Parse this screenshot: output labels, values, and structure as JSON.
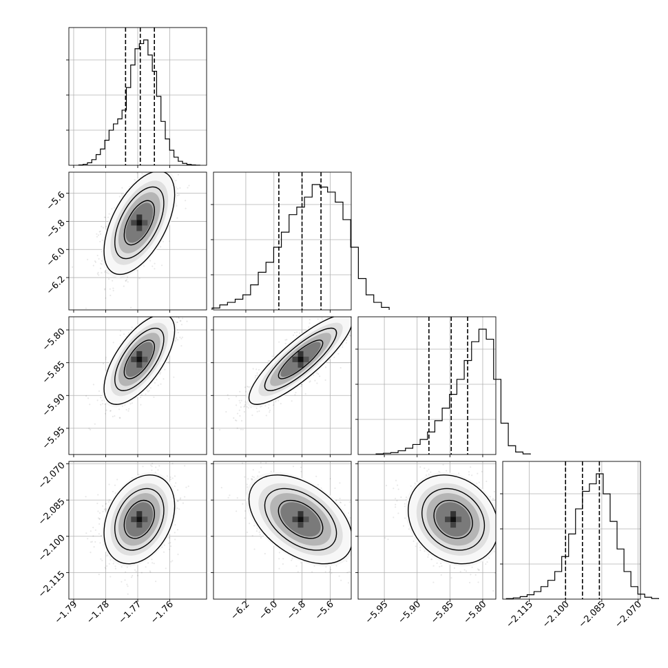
{
  "chart_data": {
    "type": "corner",
    "parameters": [
      {
        "mean": -1.7695,
        "sigma": 0.0045,
        "range": [
          -1.7915,
          -1.7485
        ],
        "ticks": [
          -1.79,
          -1.78,
          -1.77,
          -1.76
        ],
        "tick_labels": [
          "−1.79",
          "−1.78",
          "−1.77",
          "−1.76"
        ],
        "quantiles": [
          -1.7738,
          -1.7692,
          -1.7648
        ],
        "hist_values": [
          0.003,
          0.008,
          0.02,
          0.045,
          0.085,
          0.13,
          0.2,
          0.28,
          0.33,
          0.37,
          0.44,
          0.62,
          0.8,
          0.93,
          0.97,
          1.0,
          0.88,
          0.75,
          0.55,
          0.35,
          0.21,
          0.12,
          0.065,
          0.032,
          0.015,
          0.007,
          0.003,
          0.001
        ]
      },
      {
        "mean": -5.81,
        "sigma": 0.15,
        "range": [
          -6.43,
          -5.45
        ],
        "ticks": [
          -6.2,
          -6.0,
          -5.8,
          -5.6
        ],
        "tick_labels": [
          "−6.2",
          "−6.0",
          "−5.8",
          "−5.6"
        ],
        "quantiles": [
          -5.965,
          -5.8,
          -5.665
        ],
        "hist_values": [
          0.015,
          0.04,
          0.06,
          0.085,
          0.12,
          0.2,
          0.3,
          0.38,
          0.5,
          0.62,
          0.76,
          0.82,
          0.9,
          1.0,
          0.98,
          0.94,
          0.86,
          0.72,
          0.5,
          0.25,
          0.12,
          0.06,
          0.02
        ]
      },
      {
        "mean": -5.845,
        "sigma": 0.028,
        "range": [
          -5.99,
          -5.78
        ],
        "ticks": [
          -5.95,
          -5.9,
          -5.85,
          -5.8
        ],
        "tick_labels": [
          "−5.95",
          "−5.90",
          "−5.85",
          "−5.80"
        ],
        "quantiles": [
          -5.882,
          -5.848,
          -5.823
        ],
        "hist_values": [
          0.005,
          0.01,
          0.015,
          0.03,
          0.05,
          0.08,
          0.12,
          0.18,
          0.27,
          0.37,
          0.48,
          0.6,
          0.75,
          0.9,
          1.0,
          0.92,
          0.6,
          0.25,
          0.07,
          0.02,
          0.005
        ]
      },
      {
        "mean": -2.093,
        "sigma": 0.0075,
        "range": [
          -2.126,
          -2.069
        ],
        "ticks": [
          -2.115,
          -2.1,
          -2.085,
          -2.07
        ],
        "tick_labels": [
          "−2.115",
          "−2.100",
          "−2.085",
          "−2.070"
        ],
        "quantiles": [
          -2.1,
          -2.093,
          -2.086
        ],
        "hist_values": [
          0.004,
          0.01,
          0.02,
          0.035,
          0.06,
          0.1,
          0.15,
          0.22,
          0.34,
          0.52,
          0.72,
          0.86,
          0.92,
          1.0,
          0.84,
          0.62,
          0.4,
          0.22,
          0.1,
          0.04,
          0.015,
          0.005
        ]
      }
    ],
    "correlations": {
      "1_0": 0.55,
      "2_0": 0.65,
      "2_1": 0.85,
      "3_0": 0.3,
      "3_1": -0.45,
      "3_2": -0.2
    },
    "grid": true,
    "quantile_levels": [
      0.16,
      0.5,
      0.84
    ]
  }
}
